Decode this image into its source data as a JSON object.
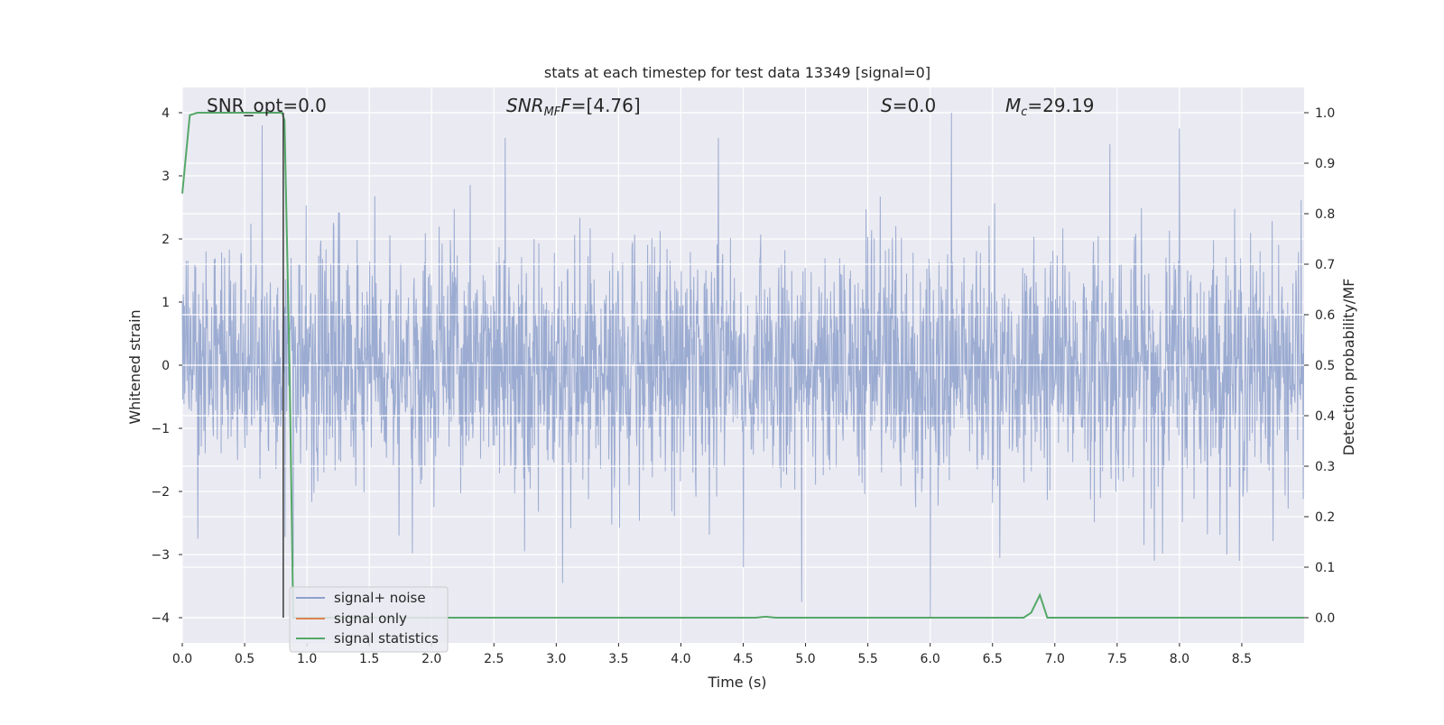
{
  "chart_data": {
    "type": "line",
    "title": "stats at each timestep for test data 13349 [signal=0]",
    "xlabel": "Time (s)",
    "ylabel_left": "Whitened strain",
    "ylabel_right": "Detection probability/MF",
    "xlim": [
      0.0,
      9.0
    ],
    "ylim_left": [
      -4.4,
      4.4
    ],
    "ylim_right": [
      -0.05,
      1.05
    ],
    "x_ticks": [
      0.0,
      0.5,
      1.0,
      1.5,
      2.0,
      2.5,
      3.0,
      3.5,
      4.0,
      4.5,
      5.0,
      5.5,
      6.0,
      6.5,
      7.0,
      7.5,
      8.0,
      8.5
    ],
    "x_tick_labels": [
      "0.0",
      "0.5",
      "1.0",
      "1.5",
      "2.0",
      "2.5",
      "3.0",
      "3.5",
      "4.0",
      "4.5",
      "5.0",
      "5.5",
      "6.0",
      "6.5",
      "7.0",
      "7.5",
      "8.0",
      "8.5"
    ],
    "y_left_ticks": [
      -4,
      -3,
      -2,
      -1,
      0,
      1,
      2,
      3,
      4
    ],
    "y_left_tick_labels": [
      "−4",
      "−3",
      "−2",
      "−1",
      "0",
      "1",
      "2",
      "3",
      "4"
    ],
    "y_right_ticks": [
      0.0,
      0.1,
      0.2,
      0.3,
      0.4,
      0.5,
      0.6,
      0.7,
      0.8,
      0.9,
      1.0
    ],
    "y_right_tick_labels": [
      "0.0",
      "0.1",
      "0.2",
      "0.3",
      "0.4",
      "0.5",
      "0.6",
      "0.7",
      "0.8",
      "0.9",
      "1.0"
    ],
    "grid": true,
    "legend_position": "lower-left",
    "annotations": {
      "snr_opt": "SNR_opt=0.0",
      "snr_mf_main": "SNR",
      "snr_mf_sub": "MF",
      "snr_mf_value": "=[4.76]",
      "s_var": "S",
      "s_value": "=0.0",
      "mc_main": "M",
      "mc_sub": "c",
      "mc_value": "=29.19"
    },
    "series": [
      {
        "name": "signal+ noise",
        "color": "#8da0cb",
        "axis": "left",
        "description_samples": "whitened noise, Gaussian-like, sigma ~1, visible excursions",
        "peaks": [
          {
            "x": 0.64,
            "y": 3.8
          },
          {
            "x": 0.89,
            "y": -3.2
          },
          {
            "x": 1.74,
            "y": -2.7
          },
          {
            "x": 2.59,
            "y": 3.6
          },
          {
            "x": 3.05,
            "y": -3.45
          },
          {
            "x": 4.3,
            "y": 3.6
          },
          {
            "x": 4.5,
            "y": -3.2
          },
          {
            "x": 4.97,
            "y": -3.75
          },
          {
            "x": 6.0,
            "y": -4.0
          },
          {
            "x": 6.17,
            "y": 4.0
          },
          {
            "x": 6.56,
            "y": -3.05
          },
          {
            "x": 7.8,
            "y": -3.1
          },
          {
            "x": 8.0,
            "y": 3.75
          },
          {
            "x": 8.48,
            "y": -3.1
          },
          {
            "x": 7.44,
            "y": 3.5
          }
        ]
      },
      {
        "name": "signal only",
        "color": "#dd8452",
        "axis": "left",
        "x": [],
        "y": []
      },
      {
        "name": "signal statistics",
        "color": "#55a868",
        "axis": "right",
        "x": [
          0.0,
          0.06,
          0.12,
          0.2,
          0.4,
          0.6,
          0.75,
          0.8,
          0.82,
          0.86,
          0.89,
          1.0,
          2.0,
          3.0,
          4.0,
          4.6,
          4.68,
          4.76,
          5.0,
          6.0,
          6.5,
          6.75,
          6.81,
          6.88,
          6.94,
          7.0,
          8.0,
          9.0
        ],
        "y": [
          0.84,
          0.995,
          1.0,
          1.0,
          1.0,
          1.0,
          1.0,
          1.0,
          0.985,
          0.5,
          0.0,
          0.0,
          0.0,
          0.0,
          0.0,
          0.0,
          0.002,
          0.0,
          0.0,
          0.0,
          0.0,
          0.0,
          0.01,
          0.045,
          0.0,
          0.0,
          0.0,
          0.0
        ]
      }
    ],
    "vertical_marker": {
      "x": 0.81,
      "y_top": 4.0,
      "y_bottom": -4.0,
      "color": "#3a3a3a"
    }
  }
}
